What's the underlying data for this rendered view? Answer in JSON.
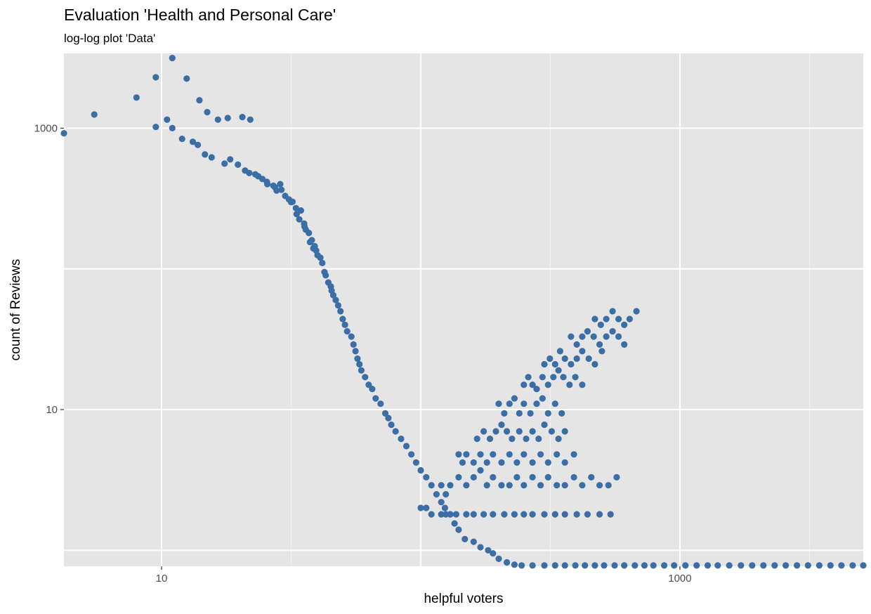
{
  "chart_data": {
    "type": "scatter",
    "title": "Evaluation 'Health and Personal Care'",
    "subtitle": "log-log plot 'Data'",
    "xlabel": "helpful voters",
    "ylabel": "count of Reviews",
    "x_scale": "log10",
    "y_scale": "log10",
    "xlim": [
      4.2,
      5100
    ],
    "ylim": [
      0.77,
      3400
    ],
    "x_ticks": [
      {
        "value": 10,
        "label": "10"
      },
      {
        "value": 1000,
        "label": "1000"
      }
    ],
    "y_ticks": [
      {
        "value": 10,
        "label": "10"
      },
      {
        "value": 1000,
        "label": "1000"
      }
    ],
    "grid": true,
    "legend": "none",
    "point_color": "#3a6ea5",
    "points": [
      [
        4.2,
        920
      ],
      [
        5.5,
        1250
      ],
      [
        8,
        1650
      ],
      [
        9.5,
        2300
      ],
      [
        11,
        3150
      ],
      [
        12.5,
        2250
      ],
      [
        14,
        1580
      ],
      [
        15,
        1300
      ],
      [
        16.5,
        1150
      ],
      [
        18,
        1180
      ],
      [
        20.5,
        1200
      ],
      [
        22,
        1150
      ],
      [
        10.5,
        1150
      ],
      [
        9.5,
        1020
      ],
      [
        11,
        1000
      ],
      [
        12,
        840
      ],
      [
        13.2,
        800
      ],
      [
        13.8,
        760
      ],
      [
        14.7,
        650
      ],
      [
        15.6,
        620
      ],
      [
        17.5,
        560
      ],
      [
        18.4,
        600
      ],
      [
        19.7,
        550
      ],
      [
        21,
        500
      ],
      [
        21.8,
        480
      ],
      [
        23,
        470
      ],
      [
        23.6,
        455
      ],
      [
        24.5,
        435
      ],
      [
        25.5,
        415
      ],
      [
        25.6,
        400
      ],
      [
        27,
        390
      ],
      [
        27.4,
        380
      ],
      [
        27.8,
        360
      ],
      [
        28.7,
        400
      ],
      [
        29,
        365
      ],
      [
        30,
        330
      ],
      [
        31,
        312
      ],
      [
        31.6,
        298
      ],
      [
        32,
        300
      ],
      [
        33,
        270
      ],
      [
        33.2,
        245
      ],
      [
        34,
        225
      ],
      [
        34.5,
        260
      ],
      [
        35.5,
        210
      ],
      [
        35.6,
        200
      ],
      [
        36,
        190
      ],
      [
        37,
        180
      ],
      [
        37.4,
        155
      ],
      [
        38,
        160
      ],
      [
        38.5,
        140
      ],
      [
        39,
        145
      ],
      [
        39.5,
        135
      ],
      [
        40,
        125
      ],
      [
        41,
        120
      ],
      [
        41.7,
        110
      ],
      [
        42.5,
        95
      ],
      [
        43,
        90
      ],
      [
        44,
        80
      ],
      [
        45,
        75
      ],
      [
        45.3,
        70
      ],
      [
        46,
        65
      ],
      [
        47,
        60
      ],
      [
        48,
        55
      ],
      [
        49,
        50
      ],
      [
        50,
        44
      ],
      [
        51,
        40
      ],
      [
        52,
        36
      ],
      [
        54,
        33
      ],
      [
        55,
        29
      ],
      [
        56,
        26
      ],
      [
        57,
        23
      ],
      [
        58,
        21
      ],
      [
        59,
        19
      ],
      [
        61,
        17
      ],
      [
        63,
        15
      ],
      [
        65,
        14
      ],
      [
        67,
        12
      ],
      [
        70,
        11
      ],
      [
        73,
        9.4
      ],
      [
        75,
        8.7
      ],
      [
        77,
        7.8
      ],
      [
        80,
        7
      ],
      [
        84,
        6.2
      ],
      [
        88,
        5.5
      ],
      [
        92,
        4.8
      ],
      [
        96,
        4.2
      ],
      [
        100,
        3.7
      ],
      [
        105,
        3.3
      ],
      [
        110,
        2.9
      ],
      [
        115,
        2.5
      ],
      [
        120,
        2.2
      ],
      [
        124,
        2.0
      ],
      [
        130,
        1.8
      ],
      [
        135,
        1.55
      ],
      [
        140,
        1.4
      ],
      [
        148,
        1.2
      ],
      [
        160,
        1.15
      ],
      [
        170,
        1.05
      ],
      [
        182,
        1.0
      ],
      [
        190,
        0.95
      ],
      [
        200,
        0.87
      ],
      [
        215,
        0.82
      ],
      [
        230,
        0.79
      ],
      [
        245,
        0.78
      ],
      [
        270,
        0.78
      ],
      [
        300,
        0.78
      ],
      [
        330,
        0.78
      ],
      [
        360,
        0.78
      ],
      [
        395,
        0.78
      ],
      [
        430,
        0.78
      ],
      [
        470,
        0.78
      ],
      [
        510,
        0.78
      ],
      [
        560,
        0.78
      ],
      [
        610,
        0.78
      ],
      [
        670,
        0.78
      ],
      [
        730,
        0.78
      ],
      [
        790,
        0.78
      ],
      [
        870,
        0.78
      ],
      [
        950,
        0.78
      ],
      [
        1050,
        0.78
      ],
      [
        1160,
        0.78
      ],
      [
        1280,
        0.78
      ],
      [
        1400,
        0.78
      ],
      [
        1550,
        0.78
      ],
      [
        1720,
        0.78
      ],
      [
        1900,
        0.78
      ],
      [
        2100,
        0.78
      ],
      [
        2320,
        0.78
      ],
      [
        2560,
        0.78
      ],
      [
        2830,
        0.78
      ],
      [
        3120,
        0.78
      ],
      [
        3450,
        0.78
      ],
      [
        3810,
        0.78
      ],
      [
        4200,
        0.78
      ],
      [
        4640,
        0.78
      ],
      [
        5100,
        0.78
      ],
      [
        100,
        2.0
      ],
      [
        105,
        2.0
      ],
      [
        110,
        1.8
      ],
      [
        120,
        1.8
      ],
      [
        125,
        1.8
      ],
      [
        130,
        1.8
      ],
      [
        137,
        1.8
      ],
      [
        150,
        1.8
      ],
      [
        160,
        1.8
      ],
      [
        175,
        1.8
      ],
      [
        190,
        1.8
      ],
      [
        210,
        1.8
      ],
      [
        230,
        1.8
      ],
      [
        250,
        1.8
      ],
      [
        270,
        1.8
      ],
      [
        300,
        1.8
      ],
      [
        330,
        1.8
      ],
      [
        360,
        1.8
      ],
      [
        400,
        1.8
      ],
      [
        440,
        1.8
      ],
      [
        490,
        1.8
      ],
      [
        540,
        1.8
      ],
      [
        120,
        2.9
      ],
      [
        125,
        2.5
      ],
      [
        130,
        2.9
      ],
      [
        140,
        3.3
      ],
      [
        150,
        2.9
      ],
      [
        160,
        3.3
      ],
      [
        170,
        3.7
      ],
      [
        180,
        2.9
      ],
      [
        190,
        3.3
      ],
      [
        205,
        2.9
      ],
      [
        220,
        2.9
      ],
      [
        235,
        3.3
      ],
      [
        250,
        2.9
      ],
      [
        270,
        3.3
      ],
      [
        290,
        2.9
      ],
      [
        310,
        3.3
      ],
      [
        335,
        2.9
      ],
      [
        360,
        2.9
      ],
      [
        390,
        3.3
      ],
      [
        420,
        2.9
      ],
      [
        455,
        3.3
      ],
      [
        490,
        2.9
      ],
      [
        530,
        2.9
      ],
      [
        570,
        3.3
      ],
      [
        140,
        4.8
      ],
      [
        145,
        4.2
      ],
      [
        150,
        4.8
      ],
      [
        160,
        4.2
      ],
      [
        170,
        4.8
      ],
      [
        180,
        4.2
      ],
      [
        190,
        4.8
      ],
      [
        205,
        4.2
      ],
      [
        220,
        4.8
      ],
      [
        235,
        4.2
      ],
      [
        250,
        4.8
      ],
      [
        270,
        4.2
      ],
      [
        290,
        4.8
      ],
      [
        310,
        4.2
      ],
      [
        335,
        4.8
      ],
      [
        360,
        4.2
      ],
      [
        390,
        4.8
      ],
      [
        165,
        6.2
      ],
      [
        175,
        7
      ],
      [
        185,
        6.2
      ],
      [
        195,
        7
      ],
      [
        205,
        7.8
      ],
      [
        215,
        7
      ],
      [
        225,
        6.2
      ],
      [
        240,
        7
      ],
      [
        255,
        6.2
      ],
      [
        270,
        7
      ],
      [
        285,
        6.2
      ],
      [
        300,
        7.8
      ],
      [
        320,
        7
      ],
      [
        340,
        6.2
      ],
      [
        360,
        7
      ],
      [
        200,
        11
      ],
      [
        210,
        9.4
      ],
      [
        220,
        11
      ],
      [
        230,
        12
      ],
      [
        240,
        9.4
      ],
      [
        250,
        11
      ],
      [
        265,
        9.4
      ],
      [
        280,
        11
      ],
      [
        295,
        12
      ],
      [
        310,
        9.4
      ],
      [
        330,
        11
      ],
      [
        350,
        9.4
      ],
      [
        250,
        15
      ],
      [
        260,
        17
      ],
      [
        270,
        15
      ],
      [
        280,
        14
      ],
      [
        295,
        17
      ],
      [
        310,
        15
      ],
      [
        325,
        17
      ],
      [
        340,
        19
      ],
      [
        355,
        17
      ],
      [
        375,
        15
      ],
      [
        395,
        17
      ],
      [
        420,
        15
      ],
      [
        300,
        21
      ],
      [
        315,
        23
      ],
      [
        330,
        21
      ],
      [
        345,
        26
      ],
      [
        360,
        23
      ],
      [
        380,
        21
      ],
      [
        400,
        23
      ],
      [
        420,
        26
      ],
      [
        445,
        23
      ],
      [
        470,
        21
      ],
      [
        500,
        26
      ],
      [
        380,
        33
      ],
      [
        400,
        29
      ],
      [
        420,
        33
      ],
      [
        440,
        36
      ],
      [
        465,
        33
      ],
      [
        490,
        29
      ],
      [
        520,
        33
      ],
      [
        550,
        36
      ],
      [
        580,
        33
      ],
      [
        610,
        29
      ],
      [
        470,
        44
      ],
      [
        495,
        40
      ],
      [
        520,
        44
      ],
      [
        550,
        50
      ],
      [
        580,
        44
      ],
      [
        610,
        40
      ],
      [
        640,
        44
      ],
      [
        680,
        50
      ]
    ]
  }
}
